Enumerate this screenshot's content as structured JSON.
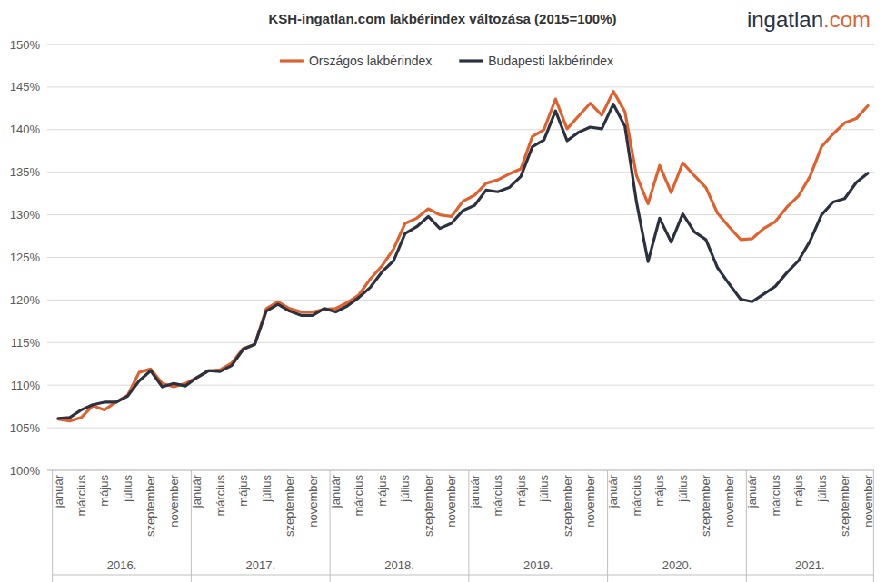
{
  "chart_data": {
    "type": "line",
    "title": "KSH-ingatlan.com lakbérindex változása (2015=100%)",
    "source_logo": "ingatlan.com",
    "categories": [
      "január",
      null,
      "március",
      null,
      "május",
      null,
      "július",
      null,
      "szeptember",
      null,
      "november",
      null,
      "január",
      null,
      "március",
      null,
      "május",
      null,
      "július",
      null,
      "szeptember",
      null,
      "november",
      null,
      "január",
      null,
      "március",
      null,
      "május",
      null,
      "július",
      null,
      "szeptember",
      null,
      "november",
      null,
      "január",
      null,
      "március",
      null,
      "május",
      null,
      "július",
      null,
      "szeptember",
      null,
      "november",
      null,
      "január",
      null,
      "március",
      null,
      "május",
      null,
      "július",
      null,
      "szeptember",
      null,
      "november",
      null,
      "január",
      null,
      "március",
      null,
      "május",
      null,
      "július",
      null,
      "szeptember",
      null,
      "november"
    ],
    "x_groups": [
      {
        "label": "2016.",
        "start": 0,
        "end": 11
      },
      {
        "label": "2017.",
        "start": 12,
        "end": 23
      },
      {
        "label": "2018.",
        "start": 24,
        "end": 35
      },
      {
        "label": "2019.",
        "start": 36,
        "end": 47
      },
      {
        "label": "2020.",
        "start": 48,
        "end": 59
      },
      {
        "label": "2021.",
        "start": 60,
        "end": 70
      }
    ],
    "series": [
      {
        "name": "Országos lakbérindex",
        "color": "#e0612d",
        "values": [
          106.0,
          105.8,
          106.2,
          107.6,
          107.1,
          108.0,
          108.8,
          111.5,
          111.9,
          110.2,
          109.8,
          110.2,
          110.9,
          111.7,
          111.8,
          112.6,
          114.3,
          114.8,
          119.0,
          119.8,
          119.0,
          118.6,
          118.6,
          118.9,
          119.0,
          119.7,
          120.6,
          122.5,
          124.0,
          126.0,
          129.0,
          129.6,
          130.7,
          130.0,
          129.8,
          131.6,
          132.3,
          133.7,
          134.1,
          134.8,
          135.4,
          139.2,
          140.0,
          143.6,
          140.1,
          141.6,
          143.1,
          141.7,
          144.5,
          142.1,
          134.6,
          131.3,
          135.8,
          132.6,
          136.1,
          134.6,
          133.2,
          130.2,
          128.6,
          127.1,
          127.2,
          128.4,
          129.2,
          130.9,
          132.2,
          134.5,
          138.0,
          139.5,
          140.8,
          141.3,
          142.8
        ]
      },
      {
        "name": "Budapesti lakbérindex",
        "color": "#2c3140",
        "values": [
          106.1,
          106.2,
          107.1,
          107.7,
          108.0,
          108.0,
          108.7,
          110.5,
          111.7,
          109.8,
          110.2,
          109.9,
          110.9,
          111.7,
          111.6,
          112.3,
          114.2,
          114.8,
          118.7,
          119.5,
          118.7,
          118.2,
          118.2,
          119.0,
          118.6,
          119.3,
          120.3,
          121.5,
          123.3,
          124.6,
          127.8,
          128.6,
          129.8,
          128.4,
          129.0,
          130.5,
          131.1,
          132.9,
          132.7,
          133.2,
          134.5,
          138.0,
          138.8,
          142.2,
          138.7,
          139.7,
          140.3,
          140.1,
          143.0,
          140.4,
          131.5,
          124.5,
          129.6,
          126.8,
          130.1,
          128.0,
          127.1,
          123.8,
          121.9,
          120.1,
          119.8,
          120.7,
          121.6,
          123.2,
          124.6,
          126.9,
          130.0,
          131.5,
          131.9,
          133.8,
          134.9
        ]
      }
    ],
    "ylim": [
      100,
      150
    ],
    "yticks": [
      {
        "value": 100,
        "label": "100%"
      },
      {
        "value": 105,
        "label": "105%"
      },
      {
        "value": 110,
        "label": "110%"
      },
      {
        "value": 115,
        "label": "115%"
      },
      {
        "value": 120,
        "label": "120%"
      },
      {
        "value": 125,
        "label": "125%"
      },
      {
        "value": 130,
        "label": "130%"
      },
      {
        "value": 135,
        "label": "135%"
      },
      {
        "value": 140,
        "label": "140%"
      },
      {
        "value": 145,
        "label": "145%"
      },
      {
        "value": 150,
        "label": "150%"
      }
    ],
    "grid": true,
    "legend": "top"
  }
}
